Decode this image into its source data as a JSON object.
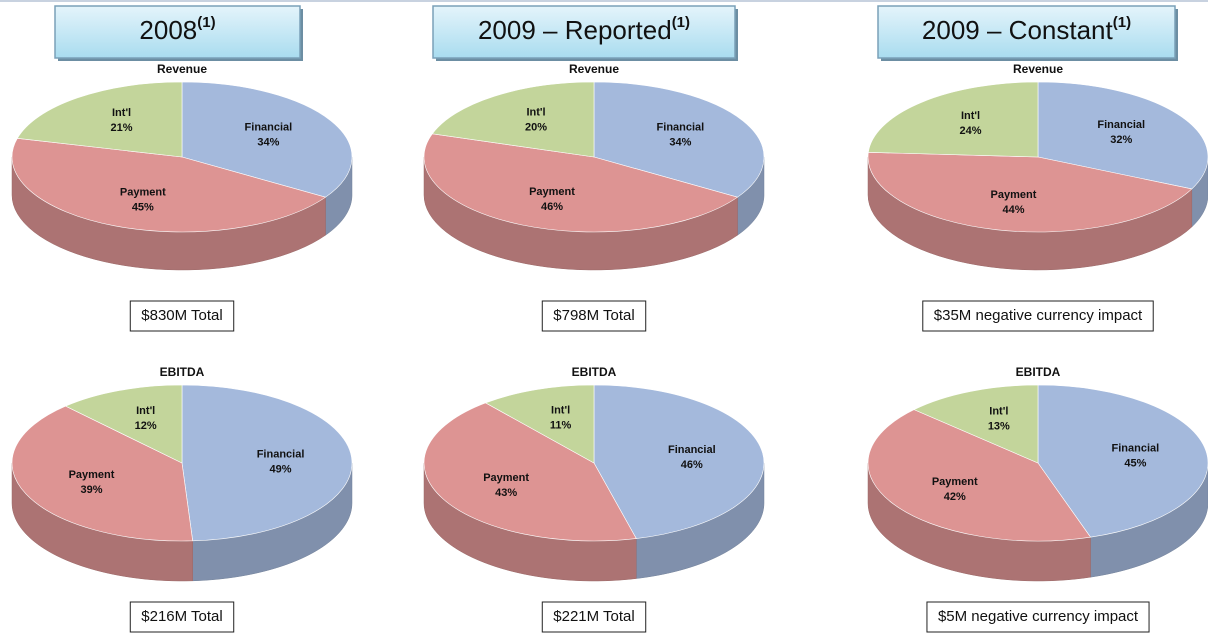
{
  "headers": [
    {
      "text": "2008",
      "mark": "(1)"
    },
    {
      "text": "2009 – Reported",
      "mark": "(1)"
    },
    {
      "text": "2009 – Constant",
      "mark": "(1)"
    }
  ],
  "chart_data": [
    {
      "type": "pie",
      "title": "Revenue",
      "categories": [
        "Financial",
        "Payment",
        "Int'l"
      ],
      "values": [
        34,
        45,
        21
      ],
      "value_labels": [
        "34%",
        "45%",
        "21%"
      ],
      "colors": [
        "#a4b9dc",
        "#dd9493",
        "#c3d59b"
      ],
      "note": "$830M Total"
    },
    {
      "type": "pie",
      "title": "Revenue",
      "categories": [
        "Financial",
        "Payment",
        "Int'l"
      ],
      "values": [
        34,
        46,
        20
      ],
      "value_labels": [
        "34%",
        "46%",
        "20%"
      ],
      "colors": [
        "#a4b9dc",
        "#dd9493",
        "#c3d59b"
      ],
      "note": "$798M Total"
    },
    {
      "type": "pie",
      "title": "Revenue",
      "categories": [
        "Financial",
        "Payment",
        "Int'l"
      ],
      "values": [
        32,
        44,
        24
      ],
      "value_labels": [
        "32%",
        "44%",
        "24%"
      ],
      "colors": [
        "#a4b9dc",
        "#dd9493",
        "#c3d59b"
      ],
      "note": "$35M negative currency impact"
    },
    {
      "type": "pie",
      "title": "EBITDA",
      "categories": [
        "Financial",
        "Payment",
        "Int'l"
      ],
      "values": [
        49,
        39,
        12
      ],
      "value_labels": [
        "49%",
        "39%",
        "12%"
      ],
      "colors": [
        "#a4b9dc",
        "#dd9493",
        "#c3d59b"
      ],
      "note": "$216M Total"
    },
    {
      "type": "pie",
      "title": "EBITDA",
      "categories": [
        "Financial",
        "Payment",
        "Int'l"
      ],
      "values": [
        46,
        43,
        11
      ],
      "value_labels": [
        "46%",
        "43%",
        "11%"
      ],
      "colors": [
        "#a4b9dc",
        "#dd9493",
        "#c3d59b"
      ],
      "note": "$221M Total"
    },
    {
      "type": "pie",
      "title": "EBITDA",
      "categories": [
        "Financial",
        "Payment",
        "Int'l"
      ],
      "values": [
        45,
        42,
        13
      ],
      "value_labels": [
        "45%",
        "42%",
        "13%"
      ],
      "colors": [
        "#a4b9dc",
        "#dd9493",
        "#c3d59b"
      ],
      "note": "$5M negative currency impact"
    }
  ]
}
